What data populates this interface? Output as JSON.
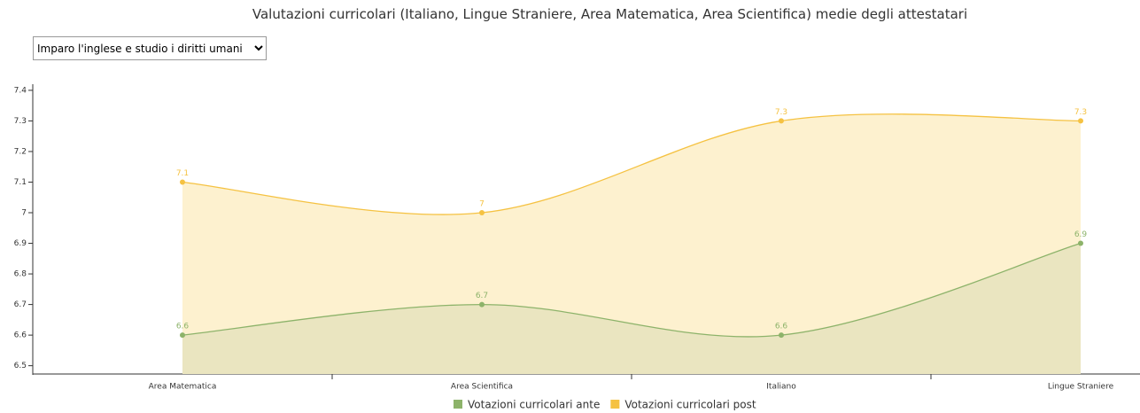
{
  "dropdown": {
    "selected": "Imparo l'inglese e studio i diritti umani"
  },
  "chart_data": {
    "type": "areaspline",
    "title": "Valutazioni curricolari (Italiano, Lingue Straniere, Area Matematica, Area Scientifica) medie degli attestatari",
    "categories": [
      "Area Matematica",
      "Area Scientifica",
      "Italiano",
      "Lingue Straniere"
    ],
    "series": [
      {
        "name": "Votazioni curricolari ante",
        "color": "#8db36a",
        "values": [
          6.6,
          6.7,
          6.6,
          6.9
        ]
      },
      {
        "name": "Votazioni curricolari post",
        "color": "#f5c242",
        "values": [
          7.1,
          7,
          7.3,
          7.3
        ]
      }
    ],
    "ylim": [
      6.47,
      7.42
    ],
    "yticks": [
      6.5,
      6.6,
      6.7,
      6.8,
      6.9,
      7,
      7.1,
      7.2,
      7.3,
      7.4
    ],
    "grid": false,
    "legend": "bottom"
  }
}
